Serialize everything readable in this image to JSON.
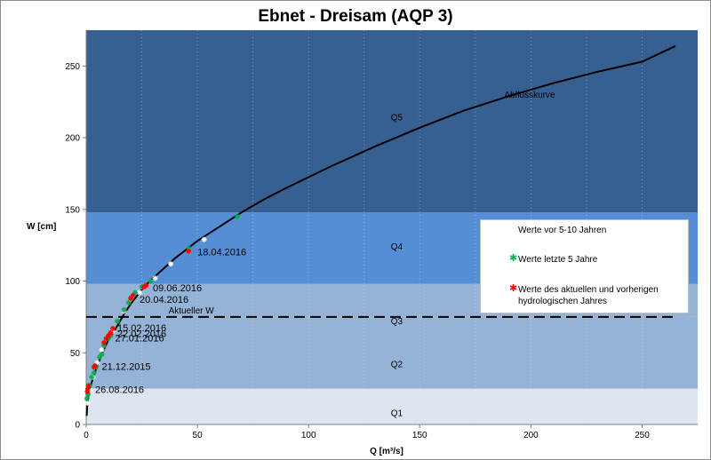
{
  "chart_data": {
    "type": "scatter",
    "title": "Ebnet - Dreisam (AQP 3)",
    "xlabel": "Q [m³/s]",
    "ylabel": "W [cm]",
    "xlim": [
      0,
      275
    ],
    "ylim": [
      0,
      275
    ],
    "xticks": [
      0,
      50,
      100,
      150,
      200,
      250
    ],
    "yticks": [
      0,
      50,
      100,
      150,
      200,
      250
    ],
    "zones": [
      {
        "label": "Q1",
        "from": 0,
        "to": 25,
        "color": "#dce6f1",
        "label_x": 137,
        "label_y": 6
      },
      {
        "label": "Q2",
        "from": 25,
        "to": 75,
        "color": "#95b3d7",
        "label_x": 137,
        "label_y": 40
      },
      {
        "label": "Q3",
        "from": 75,
        "to": 98,
        "color": "#95b3d7",
        "label_x": 137,
        "label_y": 70
      },
      {
        "label": "Q4",
        "from": 98,
        "to": 148,
        "color": "#558ed5",
        "label_x": 137,
        "label_y": 122
      },
      {
        "label": "Q5",
        "from": 148,
        "to": 275,
        "color": "#376092",
        "label_x": 137,
        "label_y": 212
      }
    ],
    "rating_curve": {
      "name": "Abflusskurve",
      "label_x": 188,
      "label_y": 228,
      "x": [
        0.2,
        0.5,
        1,
        2,
        3,
        5,
        7,
        10,
        13,
        17,
        20,
        25,
        30,
        40,
        50,
        60,
        70,
        80,
        90,
        110,
        130,
        150,
        170,
        190,
        210,
        230,
        250,
        265
      ],
      "y": [
        6,
        14,
        20,
        27,
        32,
        41,
        49,
        59,
        66,
        77,
        84,
        94,
        102,
        116,
        128,
        138,
        148,
        157,
        165,
        180,
        194,
        207,
        219,
        229,
        238,
        246,
        253,
        264
      ]
    },
    "current_w": {
      "label": "Aktueller W",
      "value": 75,
      "label_x": 37
    },
    "series": [
      {
        "name": "Werte vor 5-10 Jahren",
        "color": "#ffffff",
        "points": [
          [
            0.5,
            15
          ],
          [
            1.5,
            24
          ],
          [
            3,
            33
          ],
          [
            5,
            43
          ],
          [
            7,
            52
          ],
          [
            12,
            65
          ],
          [
            17,
            79
          ],
          [
            24,
            92
          ],
          [
            31,
            102
          ],
          [
            38,
            112
          ],
          [
            53,
            129
          ]
        ]
      },
      {
        "name": "Werte letzte 5 Jahre",
        "color": "#00b050",
        "points": [
          [
            0.3,
            18
          ],
          [
            0.8,
            21
          ],
          [
            1.5,
            27
          ],
          [
            2.5,
            33
          ],
          [
            3.5,
            36
          ],
          [
            4.5,
            40
          ],
          [
            6,
            47
          ],
          [
            7,
            49
          ],
          [
            8,
            55
          ],
          [
            10,
            60
          ],
          [
            11,
            62
          ],
          [
            14,
            72
          ],
          [
            17,
            80
          ],
          [
            19,
            85
          ],
          [
            22,
            92
          ],
          [
            25,
            96
          ],
          [
            29,
            100
          ],
          [
            46,
            123
          ],
          [
            68,
            145
          ]
        ]
      },
      {
        "name": "Werte des aktuellen und vorherigen hydrologischen Jahres",
        "color": "#ff0000",
        "points": [
          [
            0.5,
            23
          ],
          [
            0.8,
            25
          ],
          [
            1,
            27
          ],
          [
            3.5,
            40
          ],
          [
            4,
            41
          ],
          [
            8,
            57
          ],
          [
            9,
            60
          ],
          [
            10,
            62
          ],
          [
            11,
            64
          ],
          [
            12,
            67
          ],
          [
            20,
            88
          ],
          [
            21,
            90
          ],
          [
            26,
            96
          ],
          [
            27,
            97
          ],
          [
            46,
            121
          ]
        ]
      }
    ],
    "annotations": [
      {
        "text": "26.08.2016",
        "x": 4,
        "y": 22
      },
      {
        "text": "21.12.2015",
        "x": 7,
        "y": 38
      },
      {
        "text": "27.01.2016",
        "x": 13,
        "y": 58
      },
      {
        "text": "22.02.2016",
        "x": 14,
        "y": 61
      },
      {
        "text": "15.02.2016",
        "x": 14,
        "y": 65
      },
      {
        "text": "20.04.2016",
        "x": 24,
        "y": 85
      },
      {
        "text": "09.06.2016",
        "x": 30,
        "y": 93
      },
      {
        "text": "18.04.2016",
        "x": 50,
        "y": 118
      }
    ],
    "legend": {
      "position": "right",
      "entries": [
        "Werte vor 5-10 Jahren",
        "Werte letzte 5 Jahre",
        "Werte des aktuellen und vorherigen hydrologischen Jahres"
      ]
    }
  }
}
